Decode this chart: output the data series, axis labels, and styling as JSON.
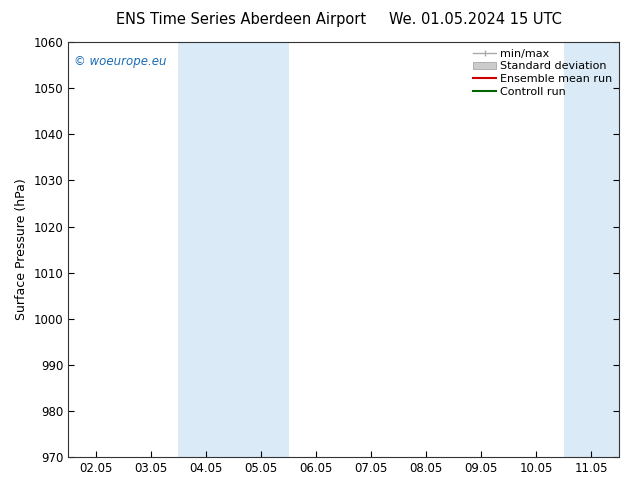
{
  "title_left": "ENS Time Series Aberdeen Airport",
  "title_right": "We. 01.05.2024 15 UTC",
  "ylabel": "Surface Pressure (hPa)",
  "watermark": "© woeurope.eu",
  "ylim": [
    970,
    1060
  ],
  "yticks": [
    970,
    980,
    990,
    1000,
    1010,
    1020,
    1030,
    1040,
    1050,
    1060
  ],
  "xtick_labels": [
    "02.05",
    "03.05",
    "04.05",
    "05.05",
    "06.05",
    "07.05",
    "08.05",
    "09.05",
    "10.05",
    "11.05"
  ],
  "xtick_positions": [
    0,
    1,
    2,
    3,
    4,
    5,
    6,
    7,
    8,
    9
  ],
  "xlim": [
    -0.5,
    9.5
  ],
  "shaded_bands": [
    {
      "x_start": 1.5,
      "x_end": 3.5
    },
    {
      "x_start": 8.5,
      "x_end": 9.5
    }
  ],
  "shade_color": "#daeaf7",
  "background_color": "#ffffff",
  "plot_bg_color": "#ffffff",
  "legend_entries": [
    {
      "label": "min/max",
      "color": "#aaaaaa",
      "lw": 1.2,
      "style": "line_with_caps"
    },
    {
      "label": "Standard deviation",
      "color": "#cccccc",
      "lw": 6,
      "style": "bar"
    },
    {
      "label": "Ensemble mean run",
      "color": "#cc0000",
      "lw": 1.5,
      "style": "line"
    },
    {
      "label": "Controll run",
      "color": "#006600",
      "lw": 1.5,
      "style": "line"
    }
  ],
  "watermark_color": "#1a6cb5",
  "title_fontsize": 10.5,
  "tick_fontsize": 8.5,
  "ylabel_fontsize": 9,
  "legend_fontsize": 8
}
